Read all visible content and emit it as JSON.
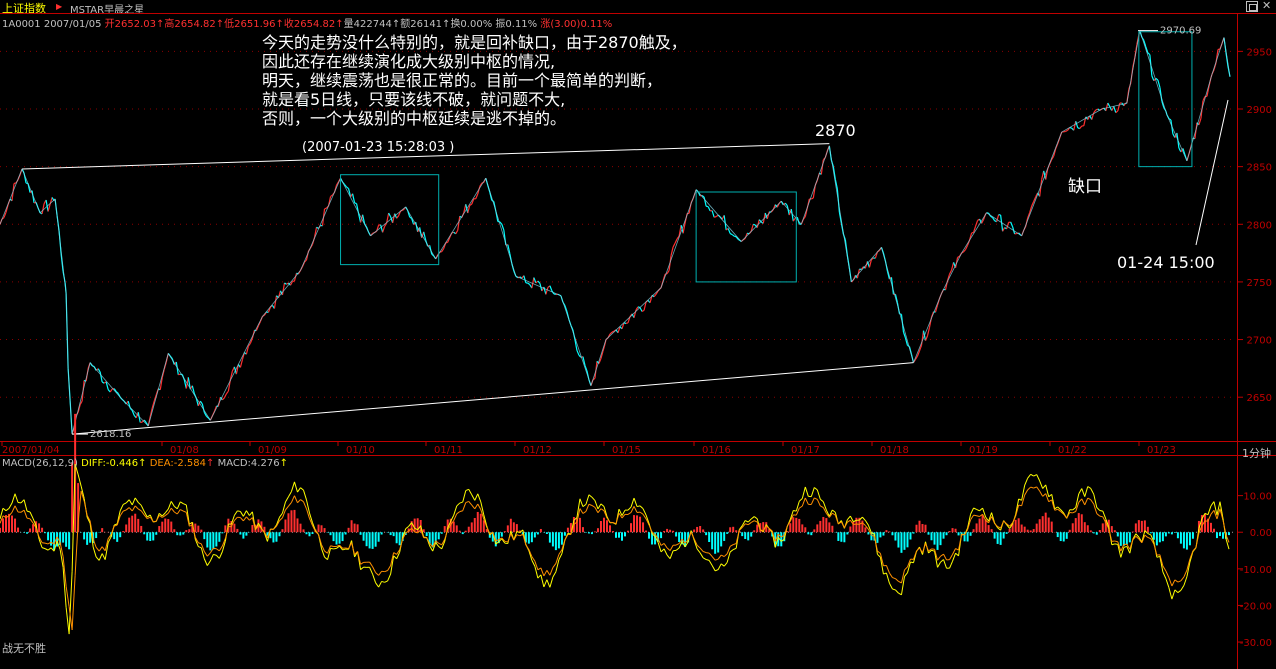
{
  "window": {
    "index_name": "上证指数",
    "title": "MSTAR早晨之星",
    "max_icon": "maximize-icon",
    "close_icon": "close-icon",
    "close_glyph": "✕"
  },
  "quote": {
    "code_date": "1A0001 2007/01/05",
    "open": "开2652.03",
    "high": "高2654.82",
    "low": "低2651.96",
    "close": "收2654.82",
    "volume": "量422744",
    "amount": "额26141",
    "turnover": "换0.00%",
    "amplitude": "振0.11%",
    "change": "涨(3.00)0.11%"
  },
  "macd_header": {
    "name": "MACD(26,12,9)",
    "diff": "DIFF:-0.446",
    "dea": "DEA:-2.584",
    "macd": "MACD:4.276",
    "arrow": "↑"
  },
  "footer": {
    "text": "战无不胜"
  },
  "period": "1分钟",
  "annotations": {
    "commentary": [
      "今天的走势没什么特别的，就是回补缺口，由于2870触及，",
      "因此还存在继续演化成大级别中枢的情况,",
      "明天，继续震荡也是很正常的。目前一个最简单的判断，",
      "就是看5日线，只要该线不破，就问题不大,",
      "否则，一个大级别的中枢延续是逃不掉的。"
    ],
    "peak_time": "(2007-01-23 15:28:03 )",
    "peak_label": "2870",
    "gap_label": "缺口",
    "time_label": "01-24 15:00",
    "high_marker": "2970.69",
    "low_marker": "2618.16"
  },
  "colors": {
    "up": "#ff3030",
    "down": "#00ffff",
    "grid": "#8b0000",
    "axis": "#c00000",
    "diff": "#ffff00",
    "dea": "#ff9000",
    "box": "#00b0b0",
    "trend": "#ffffff"
  },
  "chart_data": [
    {
      "type": "line",
      "title": "",
      "y_axis_ticks": [
        2650,
        2700,
        2750,
        2800,
        2850,
        2900,
        2950
      ],
      "ylim": [
        2612,
        2972
      ],
      "x_axis_ticks": [
        "2007/01/04",
        "01/08",
        "01/09",
        "01/10",
        "01/11",
        "01/12",
        "01/15",
        "01/16",
        "01/17",
        "01/18",
        "01/19",
        "01/22",
        "01/23"
      ],
      "series": [
        {
          "values": [
            [
              0,
              2800
            ],
            [
              22,
              2848
            ],
            [
              40,
              2810
            ],
            [
              55,
              2822
            ],
            [
              66,
              2740
            ],
            [
              68,
              2675
            ],
            [
              72,
              2618
            ],
            [
              90,
              2680
            ],
            [
              120,
              2650
            ],
            [
              148,
              2625
            ],
            [
              168,
              2688
            ],
            [
              210,
              2630
            ],
            [
              262,
              2720
            ],
            [
              300,
              2760
            ],
            [
              340,
              2840
            ],
            [
              370,
              2790
            ],
            [
              405,
              2815
            ],
            [
              435,
              2770
            ],
            [
              485,
              2840
            ],
            [
              515,
              2755
            ],
            [
              560,
              2738
            ],
            [
              590,
              2660
            ],
            [
              605,
              2700
            ],
            [
              660,
              2745
            ],
            [
              695,
              2830
            ],
            [
              740,
              2785
            ],
            [
              780,
              2820
            ],
            [
              800,
              2800
            ],
            [
              828,
              2868
            ],
            [
              850,
              2750
            ],
            [
              880,
              2780
            ],
            [
              912,
              2680
            ],
            [
              940,
              2740
            ],
            [
              960,
              2775
            ],
            [
              985,
              2810
            ],
            [
              1020,
              2790
            ],
            [
              1060,
              2880
            ],
            [
              1100,
              2900
            ],
            [
              1125,
              2905
            ],
            [
              1138,
              2968
            ],
            [
              1165,
              2895
            ],
            [
              1185,
              2855
            ],
            [
              1210,
              2930
            ],
            [
              1222,
              2962
            ],
            [
              1228,
              2928
            ]
          ]
        }
      ],
      "trend_lines": [
        [
          [
            22,
            2848
          ],
          [
            828,
            2870
          ]
        ],
        [
          [
            72,
            2618
          ],
          [
            912,
            2680
          ]
        ]
      ],
      "pivot_boxes": [
        {
          "x": [
            340,
            438
          ],
          "y": [
            2765,
            2843
          ]
        },
        {
          "x": [
            695,
            795
          ],
          "y": [
            2750,
            2828
          ]
        },
        {
          "x": [
            1137,
            1190
          ],
          "y": [
            2850,
            2967
          ]
        }
      ]
    },
    {
      "type": "line",
      "title": "MACD(26,12,9)",
      "y_axis_ticks": [
        10.0,
        0.0,
        -10.0,
        -20.0,
        -30.0
      ],
      "ylim": [
        -36,
        17
      ],
      "series": [
        {
          "name": "DIFF",
          "values": [
            [
              0,
              3
            ],
            [
              30,
              6
            ],
            [
              60,
              -5
            ],
            [
              70,
              -35
            ],
            [
              75,
              14
            ],
            [
              100,
              -3
            ],
            [
              160,
              10
            ],
            [
              200,
              -4
            ],
            [
              300,
              8
            ],
            [
              360,
              -12
            ],
            [
              480,
              8
            ],
            [
              540,
              -12
            ],
            [
              600,
              10
            ],
            [
              700,
              -8
            ],
            [
              830,
              10
            ],
            [
              900,
              -13
            ],
            [
              1000,
              6
            ],
            [
              1050,
              12
            ],
            [
              1100,
              4
            ],
            [
              1180,
              -14
            ],
            [
              1220,
              9
            ],
            [
              1228,
              -2
            ]
          ]
        },
        {
          "name": "DEA",
          "values": [
            [
              0,
              2
            ],
            [
              30,
              4
            ],
            [
              60,
              -3
            ],
            [
              72,
              -30
            ],
            [
              80,
              10
            ],
            [
              100,
              -2
            ],
            [
              160,
              8
            ],
            [
              200,
              -3
            ],
            [
              300,
              6
            ],
            [
              360,
              -10
            ],
            [
              480,
              6
            ],
            [
              540,
              -10
            ],
            [
              600,
              8
            ],
            [
              700,
              -6
            ],
            [
              830,
              8
            ],
            [
              900,
              -11
            ],
            [
              1000,
              5
            ],
            [
              1050,
              10
            ],
            [
              1100,
              3
            ],
            [
              1180,
              -12
            ],
            [
              1220,
              7
            ],
            [
              1228,
              -1
            ]
          ]
        }
      ]
    }
  ]
}
